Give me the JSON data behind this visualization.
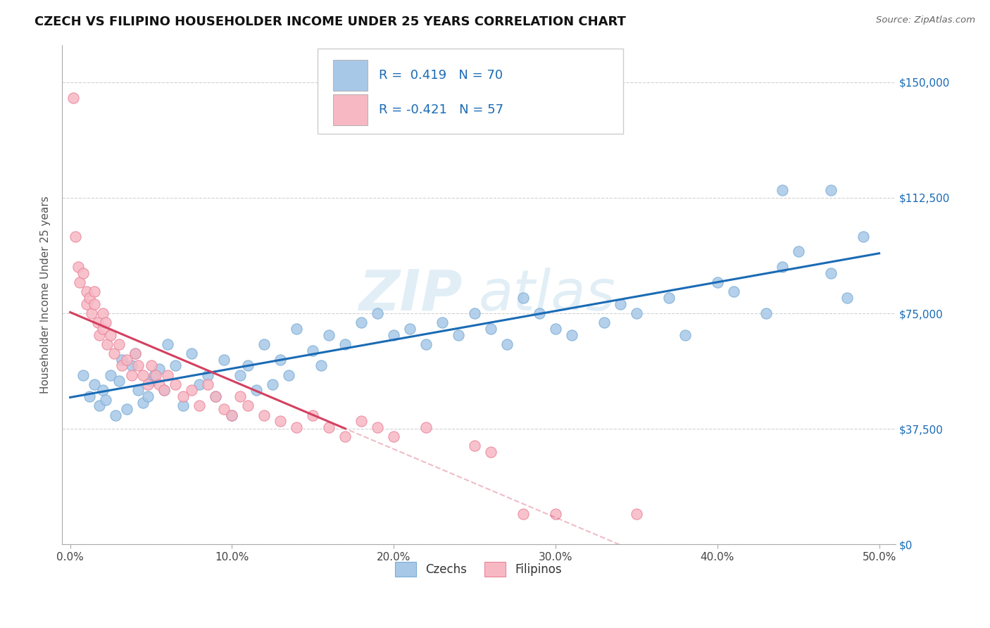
{
  "title": "CZECH VS FILIPINO HOUSEHOLDER INCOME UNDER 25 YEARS CORRELATION CHART",
  "source": "Source: ZipAtlas.com",
  "xlabel_ticks": [
    "0.0%",
    "10.0%",
    "20.0%",
    "30.0%",
    "40.0%",
    "50.0%"
  ],
  "xlabel_vals": [
    0.0,
    10.0,
    20.0,
    30.0,
    40.0,
    50.0
  ],
  "ylabel_vals": [
    0,
    37500,
    75000,
    112500,
    150000
  ],
  "ylabel_ticks": [
    "$0",
    "$37,500",
    "$75,000",
    "$112,500",
    "$150,000"
  ],
  "ylim": [
    0,
    162000
  ],
  "xlim": [
    -0.5,
    51.0
  ],
  "czech_color": "#a8c8e8",
  "czech_edge_color": "#7aadd4",
  "filipino_color": "#f7b8c4",
  "filipino_edge_color": "#e8849a",
  "czech_line_color": "#1a6bb5",
  "filipino_line_color": "#d44060",
  "legend_text_color": "#1a6bb5",
  "czech_R": 0.419,
  "czech_N": 70,
  "filipino_R": -0.421,
  "filipino_N": 57,
  "watermark": "ZIPatlas",
  "czech_x": [
    0.8,
    1.2,
    1.5,
    1.8,
    2.0,
    2.2,
    2.5,
    2.8,
    3.0,
    3.2,
    3.5,
    3.8,
    4.0,
    4.2,
    4.5,
    4.8,
    5.0,
    5.2,
    5.5,
    5.8,
    6.0,
    6.5,
    7.0,
    7.5,
    8.0,
    8.5,
    9.0,
    9.5,
    10.0,
    10.5,
    11.0,
    11.5,
    12.0,
    12.5,
    13.0,
    13.5,
    14.0,
    15.0,
    15.5,
    16.0,
    17.0,
    18.0,
    19.0,
    20.0,
    21.0,
    22.0,
    23.0,
    24.0,
    25.0,
    26.0,
    27.0,
    28.0,
    29.0,
    30.0,
    31.0,
    33.0,
    34.0,
    35.0,
    37.0,
    38.0,
    40.0,
    41.0,
    43.0,
    44.0,
    45.0,
    47.0,
    48.0,
    49.0,
    44.0,
    47.0
  ],
  "czech_y": [
    55000,
    48000,
    52000,
    45000,
    50000,
    47000,
    55000,
    42000,
    53000,
    60000,
    44000,
    58000,
    62000,
    50000,
    46000,
    48000,
    53000,
    55000,
    57000,
    50000,
    65000,
    58000,
    45000,
    62000,
    52000,
    55000,
    48000,
    60000,
    42000,
    55000,
    58000,
    50000,
    65000,
    52000,
    60000,
    55000,
    70000,
    63000,
    58000,
    68000,
    65000,
    72000,
    75000,
    68000,
    70000,
    65000,
    72000,
    68000,
    75000,
    70000,
    65000,
    80000,
    75000,
    70000,
    68000,
    72000,
    78000,
    75000,
    80000,
    68000,
    85000,
    82000,
    75000,
    90000,
    95000,
    88000,
    80000,
    100000,
    115000,
    115000
  ],
  "filipino_x": [
    0.2,
    0.3,
    0.5,
    0.6,
    0.8,
    1.0,
    1.0,
    1.2,
    1.3,
    1.5,
    1.5,
    1.7,
    1.8,
    2.0,
    2.0,
    2.2,
    2.3,
    2.5,
    2.7,
    3.0,
    3.2,
    3.5,
    3.8,
    4.0,
    4.2,
    4.5,
    4.8,
    5.0,
    5.3,
    5.5,
    5.8,
    6.0,
    6.5,
    7.0,
    7.5,
    8.0,
    8.5,
    9.0,
    9.5,
    10.0,
    10.5,
    11.0,
    12.0,
    13.0,
    14.0,
    15.0,
    16.0,
    17.0,
    18.0,
    19.0,
    20.0,
    22.0,
    25.0,
    26.0,
    28.0,
    30.0,
    35.0
  ],
  "filipino_y": [
    145000,
    100000,
    90000,
    85000,
    88000,
    82000,
    78000,
    80000,
    75000,
    82000,
    78000,
    72000,
    68000,
    75000,
    70000,
    72000,
    65000,
    68000,
    62000,
    65000,
    58000,
    60000,
    55000,
    62000,
    58000,
    55000,
    52000,
    58000,
    55000,
    52000,
    50000,
    55000,
    52000,
    48000,
    50000,
    45000,
    52000,
    48000,
    44000,
    42000,
    48000,
    45000,
    42000,
    40000,
    38000,
    42000,
    38000,
    35000,
    40000,
    38000,
    35000,
    38000,
    32000,
    30000,
    10000,
    10000,
    10000
  ]
}
